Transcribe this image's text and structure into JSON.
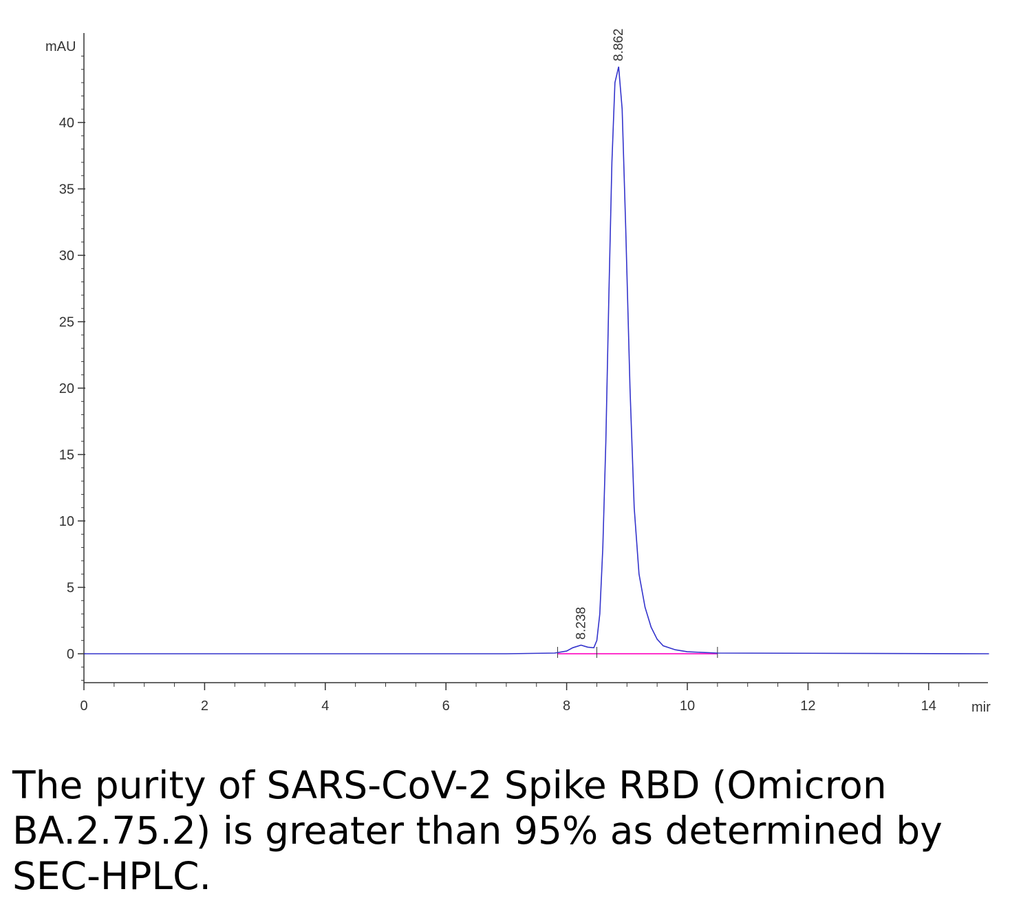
{
  "chart_data": {
    "type": "line",
    "x_unit_label": "mir",
    "y_unit_label": "mAU",
    "xlim": [
      0,
      15
    ],
    "ylim": [
      -2,
      45
    ],
    "x_ticks": [
      0,
      2,
      4,
      6,
      8,
      10,
      12,
      14
    ],
    "y_ticks": [
      0,
      5,
      10,
      15,
      20,
      25,
      30,
      35,
      40
    ],
    "grid": false,
    "legend": "none",
    "series": [
      {
        "color": "#3333cc",
        "x": [
          0,
          7.0,
          7.8,
          8.0,
          8.1,
          8.238,
          8.35,
          8.45,
          8.5,
          8.55,
          8.6,
          8.65,
          8.7,
          8.75,
          8.8,
          8.862,
          8.92,
          8.98,
          9.05,
          9.12,
          9.2,
          9.3,
          9.4,
          9.5,
          9.6,
          9.8,
          10.0,
          10.5,
          15.0
        ],
        "y": [
          0,
          0,
          0.05,
          0.2,
          0.45,
          0.65,
          0.5,
          0.45,
          1.0,
          3.0,
          8.0,
          16.0,
          27.0,
          37.0,
          43.0,
          44.2,
          41.0,
          32.0,
          20.0,
          11.0,
          6.0,
          3.5,
          2.0,
          1.1,
          0.6,
          0.3,
          0.15,
          0.05,
          0
        ]
      }
    ],
    "baseline": {
      "color": "#ff33cc",
      "x": [
        7.85,
        10.5
      ],
      "y": [
        0,
        0
      ]
    },
    "peaks": [
      {
        "label": "8.238",
        "x": 8.238,
        "y": 0.65
      },
      {
        "label": "8.862",
        "x": 8.862,
        "y": 44.2
      }
    ]
  },
  "caption": "The purity of SARS-CoV-2 Spike RBD (Omicron BA.2.75.2) is greater than 95% as determined by SEC-HPLC."
}
